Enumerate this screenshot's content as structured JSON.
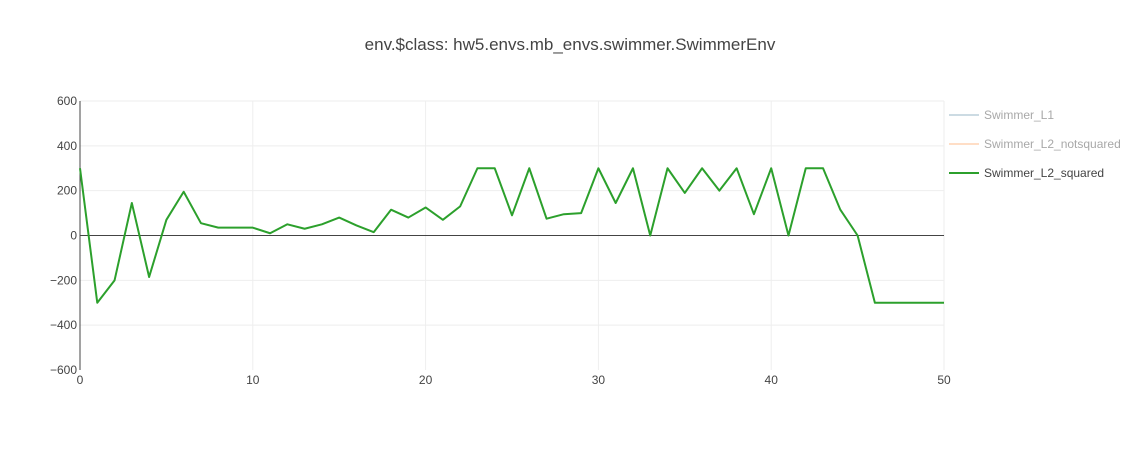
{
  "chart_data": {
    "type": "line",
    "title": "env.$class: hw5.envs.mb_envs.swimmer.SwimmerEnv",
    "xlabel": "",
    "ylabel": "",
    "xlim": [
      0,
      50
    ],
    "ylim": [
      -600,
      600
    ],
    "x_ticks": [
      "0",
      "10",
      "20",
      "30",
      "40",
      "50"
    ],
    "y_ticks": [
      "600",
      "400",
      "200",
      "0",
      "−200",
      "−400",
      "−600"
    ],
    "grid": true,
    "legend_position": "right",
    "series": [
      {
        "name": "Swimmer_L1",
        "color": "#9ab9c8",
        "visible": "legendonly",
        "values": []
      },
      {
        "name": "Swimmer_L2_notsquared",
        "color": "#ffbf8f",
        "visible": "legendonly",
        "values": []
      },
      {
        "name": "Swimmer_L2_squared",
        "color": "#2ca02c",
        "visible": true,
        "values": [
          300,
          -300,
          -200,
          145,
          -185,
          70,
          195,
          55,
          35,
          35,
          35,
          10,
          50,
          30,
          50,
          80,
          45,
          15,
          115,
          80,
          125,
          70,
          130,
          300,
          300,
          90,
          300,
          75,
          95,
          100,
          300,
          145,
          300,
          0,
          300,
          190,
          300,
          200,
          300,
          95,
          300,
          0,
          300,
          300,
          115,
          0,
          -300,
          -300,
          -300,
          -300,
          -300
        ]
      }
    ]
  }
}
